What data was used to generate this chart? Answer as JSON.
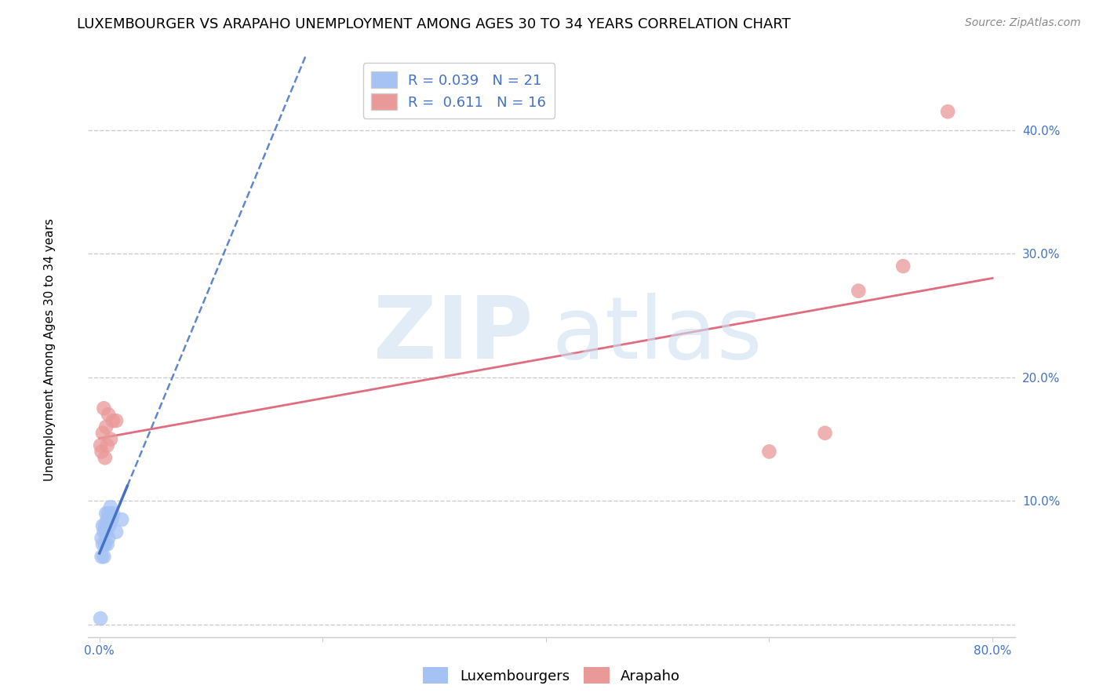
{
  "title": "LUXEMBOURGER VS ARAPAHO UNEMPLOYMENT AMONG AGES 30 TO 34 YEARS CORRELATION CHART",
  "source": "Source: ZipAtlas.com",
  "ylabel": "Unemployment Among Ages 30 to 34 years",
  "watermark_zip": "ZIP",
  "watermark_atlas": "atlas",
  "lux_R": 0.039,
  "lux_N": 21,
  "arap_R": 0.611,
  "arap_N": 16,
  "lux_color": "#a4c2f4",
  "arap_color": "#ea9999",
  "lux_line_color": "#4472c4",
  "arap_line_color": "#e06c7f",
  "lux_x": [
    0.001,
    0.002,
    0.002,
    0.003,
    0.003,
    0.004,
    0.004,
    0.005,
    0.005,
    0.006,
    0.006,
    0.007,
    0.007,
    0.008,
    0.008,
    0.009,
    0.01,
    0.011,
    0.012,
    0.015,
    0.02
  ],
  "lux_y": [
    0.005,
    0.055,
    0.07,
    0.065,
    0.08,
    0.055,
    0.075,
    0.08,
    0.065,
    0.09,
    0.075,
    0.085,
    0.065,
    0.09,
    0.07,
    0.08,
    0.095,
    0.085,
    0.09,
    0.075,
    0.085
  ],
  "arap_x": [
    0.001,
    0.002,
    0.003,
    0.004,
    0.005,
    0.006,
    0.007,
    0.008,
    0.01,
    0.012,
    0.015,
    0.6,
    0.65,
    0.68,
    0.72,
    0.76
  ],
  "arap_y": [
    0.145,
    0.14,
    0.155,
    0.175,
    0.135,
    0.16,
    0.145,
    0.17,
    0.15,
    0.165,
    0.165,
    0.14,
    0.155,
    0.27,
    0.29,
    0.415
  ],
  "xlim": [
    -0.01,
    0.82
  ],
  "ylim": [
    -0.01,
    0.46
  ],
  "xticks": [
    0.0,
    0.2,
    0.4,
    0.6,
    0.8
  ],
  "yticks": [
    0.0,
    0.1,
    0.2,
    0.3,
    0.4
  ],
  "grid_color": "#cccccc",
  "background_color": "#ffffff",
  "title_fontsize": 13,
  "axis_label_fontsize": 11,
  "tick_fontsize": 11,
  "legend_fontsize": 13,
  "source_fontsize": 10
}
